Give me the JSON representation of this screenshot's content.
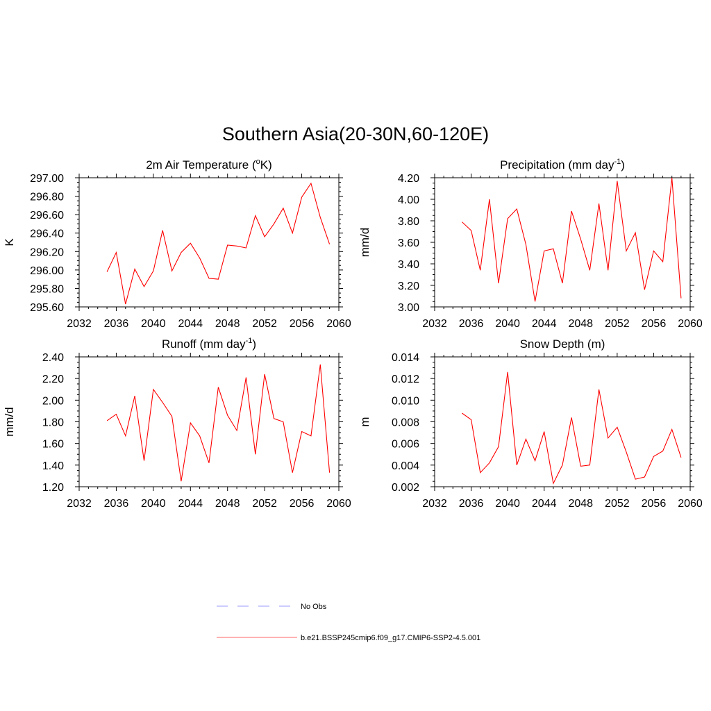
{
  "figure": {
    "title": "Southern Asia(20-30N,60-120E)",
    "legend": [
      {
        "label": "No Obs",
        "color": "#9999ff",
        "style": "dashed"
      },
      {
        "label": "b.e21.BSSP245cmip6.f09_g17.CMIP6-SSP2-4.5.001",
        "color": "#ff6666",
        "style": "solid"
      }
    ]
  },
  "chart_data": [
    {
      "type": "line",
      "title": "2m Air Temperature (",
      "title_sup": "o",
      "title_after": "K)",
      "xlabel": "",
      "ylabel": "K",
      "xlim": [
        2032,
        2060
      ],
      "ylim": [
        295.6,
        297.0
      ],
      "xticks": [
        "2032",
        "2036",
        "2040",
        "2044",
        "2048",
        "2052",
        "2056",
        "2060"
      ],
      "yticks": [
        "295.60",
        "295.80",
        "296.00",
        "296.20",
        "296.40",
        "296.60",
        "296.80",
        "297.00"
      ],
      "grid": false,
      "color": "#ff0000",
      "x": [
        2035,
        2036,
        2037,
        2038,
        2039,
        2040,
        2041,
        2042,
        2043,
        2044,
        2045,
        2046,
        2047,
        2048,
        2049,
        2050,
        2051,
        2052,
        2053,
        2054,
        2055,
        2056,
        2057,
        2058,
        2059
      ],
      "values": [
        295.98,
        296.19,
        295.63,
        296.01,
        295.82,
        295.99,
        296.43,
        295.99,
        296.19,
        296.29,
        296.13,
        295.91,
        295.9,
        296.27,
        296.26,
        296.24,
        296.59,
        296.36,
        296.5,
        296.67,
        296.4,
        296.79,
        296.94,
        296.57,
        296.28
      ]
    },
    {
      "type": "line",
      "title": "Precipitation (mm day",
      "title_sup": "-1",
      "title_after": ")",
      "xlabel": "",
      "ylabel": "mm/d",
      "xlim": [
        2032,
        2060
      ],
      "ylim": [
        3.0,
        4.2
      ],
      "xticks": [
        "2032",
        "2036",
        "2040",
        "2044",
        "2048",
        "2052",
        "2056",
        "2060"
      ],
      "yticks": [
        "3.00",
        "3.20",
        "3.40",
        "3.60",
        "3.80",
        "4.00",
        "4.20"
      ],
      "grid": false,
      "color": "#ff0000",
      "x": [
        2035,
        2036,
        2037,
        2038,
        2039,
        2040,
        2041,
        2042,
        2043,
        2044,
        2045,
        2046,
        2047,
        2048,
        2049,
        2050,
        2051,
        2052,
        2053,
        2054,
        2055,
        2056,
        2057,
        2058,
        2059
      ],
      "values": [
        3.79,
        3.71,
        3.34,
        4.0,
        3.22,
        3.82,
        3.91,
        3.58,
        3.05,
        3.52,
        3.54,
        3.22,
        3.89,
        3.63,
        3.34,
        3.96,
        3.34,
        4.17,
        3.52,
        3.69,
        3.16,
        3.52,
        3.42,
        4.2,
        3.08
      ]
    },
    {
      "type": "line",
      "title": "Runoff (mm day",
      "title_sup": "-1",
      "title_after": ")",
      "xlabel": "",
      "ylabel": "mm/d",
      "xlim": [
        2032,
        2060
      ],
      "ylim": [
        1.2,
        2.4
      ],
      "xticks": [
        "2032",
        "2036",
        "2040",
        "2044",
        "2048",
        "2052",
        "2056",
        "2060"
      ],
      "yticks": [
        "1.20",
        "1.40",
        "1.60",
        "1.80",
        "2.00",
        "2.20",
        "2.40"
      ],
      "grid": false,
      "color": "#ff0000",
      "x": [
        2035,
        2036,
        2037,
        2038,
        2039,
        2040,
        2041,
        2042,
        2043,
        2044,
        2045,
        2046,
        2047,
        2048,
        2049,
        2050,
        2051,
        2052,
        2053,
        2054,
        2055,
        2056,
        2057,
        2058,
        2059
      ],
      "values": [
        1.81,
        1.87,
        1.67,
        2.04,
        1.44,
        2.1,
        1.98,
        1.85,
        1.25,
        1.79,
        1.67,
        1.42,
        2.12,
        1.86,
        1.72,
        2.21,
        1.5,
        2.24,
        1.83,
        1.8,
        1.33,
        1.71,
        1.67,
        2.33,
        1.33
      ]
    },
    {
      "type": "line",
      "title": "Snow Depth (m)",
      "title_sup": "",
      "title_after": "",
      "xlabel": "",
      "ylabel": "m",
      "xlim": [
        2032,
        2060
      ],
      "ylim": [
        0.002,
        0.014
      ],
      "xticks": [
        "2032",
        "2036",
        "2040",
        "2044",
        "2048",
        "2052",
        "2056",
        "2060"
      ],
      "yticks": [
        "0.002",
        "0.004",
        "0.006",
        "0.008",
        "0.010",
        "0.012",
        "0.014"
      ],
      "grid": false,
      "color": "#ff0000",
      "x": [
        2035,
        2036,
        2037,
        2038,
        2039,
        2040,
        2041,
        2042,
        2043,
        2044,
        2045,
        2046,
        2047,
        2048,
        2049,
        2050,
        2051,
        2052,
        2053,
        2054,
        2055,
        2056,
        2057,
        2058,
        2059
      ],
      "values": [
        0.0088,
        0.0082,
        0.0033,
        0.0042,
        0.0057,
        0.0126,
        0.004,
        0.0064,
        0.0044,
        0.0071,
        0.0023,
        0.004,
        0.0084,
        0.0039,
        0.004,
        0.011,
        0.0065,
        0.0075,
        0.0052,
        0.0027,
        0.0029,
        0.0048,
        0.0053,
        0.0073,
        0.0047
      ]
    }
  ]
}
